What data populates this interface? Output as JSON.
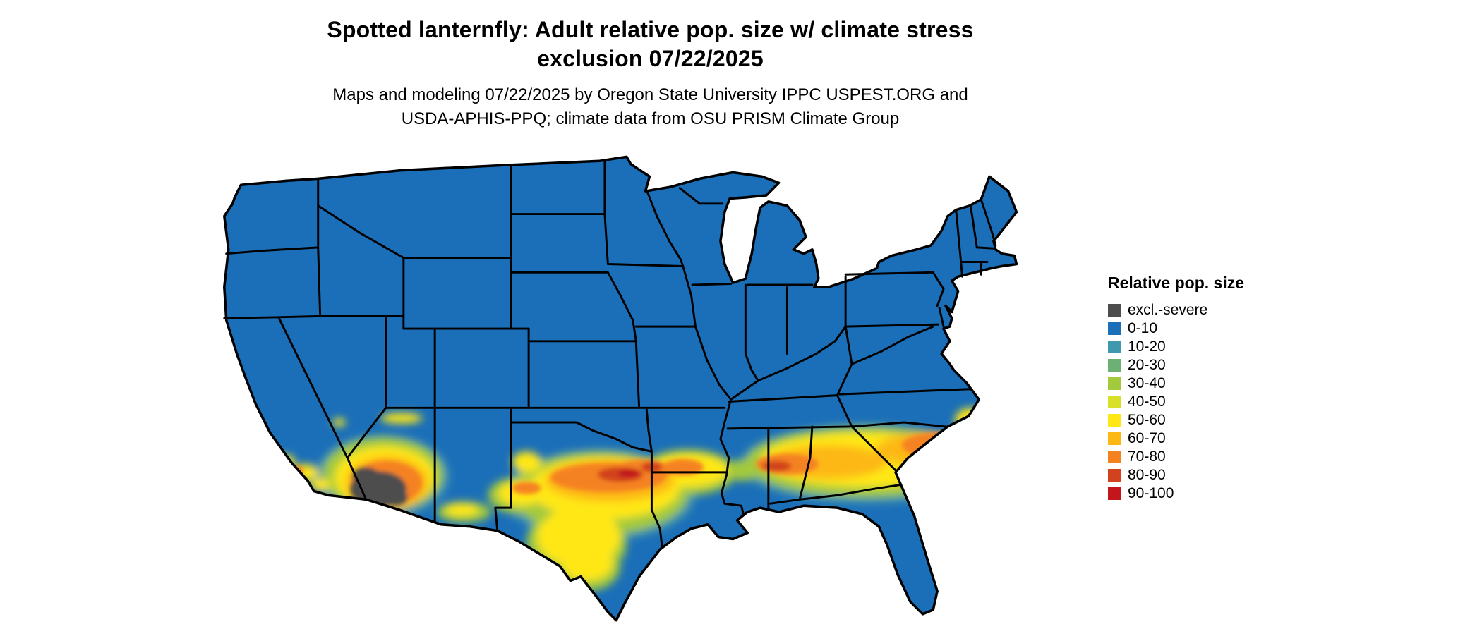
{
  "header": {
    "title_line1": "Spotted lanternfly: Adult relative pop. size w/ climate stress",
    "title_line2": "exclusion 07/22/2025",
    "subtitle_line1": "Maps and modeling 07/22/2025 by Oregon State University IPPC USPEST.ORG and",
    "subtitle_line2": "USDA-APHIS-PPQ; climate data from OSU PRISM Climate Group"
  },
  "legend": {
    "title": "Relative pop. size",
    "items": [
      {
        "label": "excl.-severe",
        "color": "#4d4d4d"
      },
      {
        "label": "0-10",
        "color": "#1b6fb8"
      },
      {
        "label": "10-20",
        "color": "#3f98ae"
      },
      {
        "label": "20-30",
        "color": "#6cb173"
      },
      {
        "label": "30-40",
        "color": "#a3c93c"
      },
      {
        "label": "40-50",
        "color": "#d9e02a"
      },
      {
        "label": "50-60",
        "color": "#ffe716"
      },
      {
        "label": "60-70",
        "color": "#fdb813"
      },
      {
        "label": "70-80",
        "color": "#f58220"
      },
      {
        "label": "80-90",
        "color": "#d1431f"
      },
      {
        "label": "90-100",
        "color": "#c3151c"
      }
    ]
  },
  "map": {
    "region": "Continental United States",
    "base_value_class": "0-10",
    "excluded_area": "southwest Arizona desert (excl.-severe)",
    "high_pop_band": "southern California, central Texas through Gulf states to the Carolinas",
    "colors": {
      "base_fill": "#1b6fb8",
      "state_border": "#000000",
      "background": "#ffffff"
    }
  }
}
